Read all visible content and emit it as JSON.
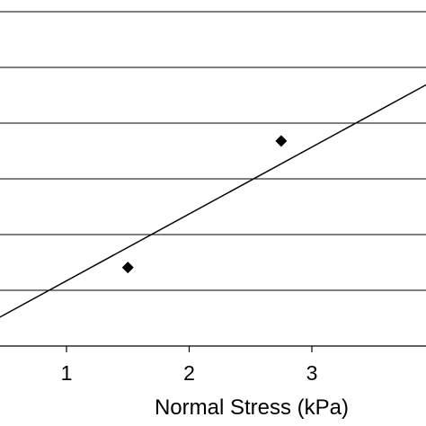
{
  "chart_data": {
    "type": "scatter",
    "title": "",
    "xlabel": "Normal Stress (kPa)",
    "ylabel": "",
    "xlim": [
      -0.5,
      4.5
    ],
    "ylim": [
      0,
      6
    ],
    "x_ticks": [
      1,
      2,
      3
    ],
    "x_tick_labels": [
      "1",
      "2",
      "3"
    ],
    "y_gridlines": [
      1,
      2,
      3,
      4,
      5,
      6
    ],
    "grid": true,
    "series": [
      {
        "marker": "diamond",
        "x": [
          1.5,
          2.75
        ],
        "y": [
          1.41,
          3.68
        ]
      }
    ],
    "trendline": {
      "type": "linear",
      "slope": 1.2,
      "intercept": -0.03
    },
    "colors": {
      "axis": "#000000",
      "grid": "#000000",
      "marker": "#000000",
      "line": "#000000"
    }
  }
}
